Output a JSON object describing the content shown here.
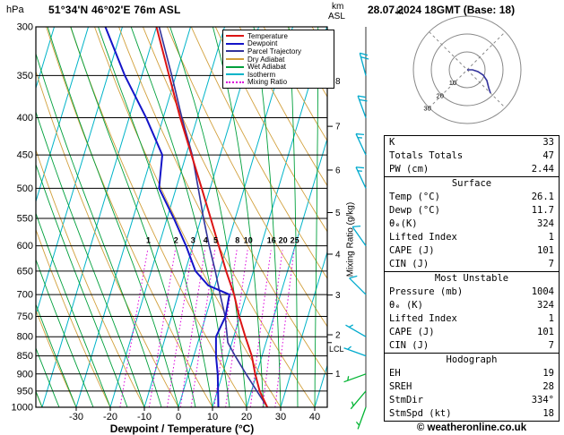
{
  "header": {
    "pressure_unit": "hPa",
    "station": "51°34'N 46°02'E 76m ASL",
    "datetime": "28.07.2024 18GMT (Base: 18)",
    "km_label": "km",
    "asl_label": "ASL"
  },
  "axes": {
    "x_label": "Dewpoint / Temperature (°C)",
    "mixing_ratio_label": "Mixing Ratio (g/kg)",
    "pressure_ticks": [
      300,
      350,
      400,
      450,
      500,
      550,
      600,
      650,
      700,
      750,
      800,
      850,
      900,
      950,
      1000
    ],
    "temp_ticks": [
      -30,
      -20,
      -10,
      0,
      10,
      20,
      30,
      40
    ],
    "km_scale": [
      [
        8,
        356
      ],
      [
        7,
        411
      ],
      [
        6,
        472
      ],
      [
        5,
        540
      ],
      [
        4,
        616
      ],
      [
        3,
        701
      ],
      [
        2,
        795
      ],
      [
        1,
        899
      ]
    ],
    "lcl": {
      "label": "LCL",
      "pressure": 815
    }
  },
  "legend": [
    {
      "label": "Temperature",
      "color": "#dc1414",
      "dashed": false
    },
    {
      "label": "Dewpoint",
      "color": "#1414c8",
      "dashed": false
    },
    {
      "label": "Parcel Trajectory",
      "color": "#32329b",
      "dashed": false
    },
    {
      "label": "Dry Adiabat",
      "color": "#d2a03c",
      "dashed": false
    },
    {
      "label": "Wet Adiabat",
      "color": "#00a03c",
      "dashed": false
    },
    {
      "label": "Isotherm",
      "color": "#00b4c8",
      "dashed": false
    },
    {
      "label": "Mixing Ratio",
      "color": "#dc00dc",
      "dashed": true
    }
  ],
  "colors": {
    "temperature": "#dc1414",
    "dewpoint": "#1414c8",
    "parcel": "#32329b",
    "dry_adiabat": "#d2a03c",
    "wet_adiabat": "#00a03c",
    "isotherm": "#00b4c8",
    "mixing_ratio": "#dc00dc",
    "barb_upper": "#00aacd",
    "barb_lower": "#00b432",
    "grid": "#000000"
  },
  "chart_data": {
    "type": "skewt-log-p",
    "pressure_range": [
      300,
      1000
    ],
    "isotherm_step": 10,
    "dry_adiabat_step": 10,
    "wet_adiabat_step": 5,
    "mixing_ratio_lines": [
      1,
      2,
      3,
      4,
      5,
      8,
      10,
      16,
      20,
      25
    ],
    "temperature_profile": [
      [
        1000,
        26.1
      ],
      [
        950,
        22.4
      ],
      [
        900,
        19.6
      ],
      [
        850,
        17.0
      ],
      [
        800,
        13.4
      ],
      [
        750,
        9.8
      ],
      [
        700,
        6.4
      ],
      [
        650,
        2.0
      ],
      [
        600,
        -2.4
      ],
      [
        550,
        -7.2
      ],
      [
        500,
        -12.5
      ],
      [
        450,
        -18.4
      ],
      [
        400,
        -25.0
      ],
      [
        350,
        -32.0
      ],
      [
        300,
        -40.0
      ]
    ],
    "dewpoint_profile": [
      [
        1000,
        11.7
      ],
      [
        950,
        10.2
      ],
      [
        900,
        8.6
      ],
      [
        850,
        6.5
      ],
      [
        800,
        4.8
      ],
      [
        750,
        5.8
      ],
      [
        700,
        5.0
      ],
      [
        680,
        -2.0
      ],
      [
        650,
        -7.0
      ],
      [
        600,
        -12.0
      ],
      [
        550,
        -18.0
      ],
      [
        500,
        -25.0
      ],
      [
        450,
        -27.0
      ],
      [
        400,
        -35.0
      ],
      [
        350,
        -45.0
      ],
      [
        300,
        -55.0
      ]
    ],
    "parcel_profile": [
      [
        1000,
        26.1
      ],
      [
        950,
        21.6
      ],
      [
        900,
        16.9
      ],
      [
        850,
        12.1
      ],
      [
        815,
        8.8
      ],
      [
        750,
        5.7
      ],
      [
        700,
        2.3
      ],
      [
        650,
        -1.2
      ],
      [
        600,
        -5.2
      ],
      [
        550,
        -9.3
      ],
      [
        500,
        -13.5
      ],
      [
        450,
        -18.2
      ],
      [
        400,
        -24.5
      ],
      [
        350,
        -31.2
      ],
      [
        300,
        -39.2
      ]
    ],
    "wind_barbs": [
      {
        "p": 350,
        "dir": 345,
        "kt": 20,
        "level": "upper"
      },
      {
        "p": 400,
        "dir": 340,
        "kt": 20,
        "level": "upper"
      },
      {
        "p": 450,
        "dir": 335,
        "kt": 15,
        "level": "upper"
      },
      {
        "p": 500,
        "dir": 335,
        "kt": 15,
        "level": "upper"
      },
      {
        "p": 600,
        "dir": 325,
        "kt": 10,
        "level": "upper"
      },
      {
        "p": 700,
        "dir": 315,
        "kt": 10,
        "level": "upper"
      },
      {
        "p": 800,
        "dir": 300,
        "kt": 5,
        "level": "upper"
      },
      {
        "p": 850,
        "dir": 290,
        "kt": 5,
        "level": "upper"
      },
      {
        "p": 900,
        "dir": 250,
        "kt": 5,
        "level": "lower"
      },
      {
        "p": 950,
        "dir": 220,
        "kt": 5,
        "level": "lower"
      },
      {
        "p": 1000,
        "dir": 200,
        "kt": 5,
        "level": "lower"
      }
    ]
  },
  "hodograph": {
    "unit": "kt",
    "rings_kt": [
      10,
      20,
      30
    ],
    "trace_kt": [
      [
        0,
        0
      ],
      [
        3,
        0
      ],
      [
        6,
        1
      ],
      [
        9,
        3
      ],
      [
        11,
        6
      ],
      [
        12,
        10
      ],
      [
        13,
        13
      ]
    ]
  },
  "stats_panels": [
    {
      "header": null,
      "rows": [
        [
          "K",
          "33"
        ],
        [
          "Totals Totals",
          "47"
        ],
        [
          "PW (cm)",
          "2.44"
        ]
      ]
    },
    {
      "header": "Surface",
      "rows": [
        [
          "Temp (°C)",
          "26.1"
        ],
        [
          "Dewp (°C)",
          "11.7"
        ],
        [
          "θₑ(K)",
          "324"
        ],
        [
          "Lifted Index",
          "1"
        ],
        [
          "CAPE (J)",
          "101"
        ],
        [
          "CIN (J)",
          "7"
        ]
      ]
    },
    {
      "header": "Most Unstable",
      "rows": [
        [
          "Pressure (mb)",
          "1004"
        ],
        [
          "θₑ (K)",
          "324"
        ],
        [
          "Lifted Index",
          "1"
        ],
        [
          "CAPE (J)",
          "101"
        ],
        [
          "CIN (J)",
          "7"
        ]
      ]
    },
    {
      "header": "Hodograph",
      "rows": [
        [
          "EH",
          "19"
        ],
        [
          "SREH",
          "28"
        ],
        [
          "StmDir",
          "334°"
        ],
        [
          "StmSpd (kt)",
          "18"
        ]
      ]
    }
  ],
  "footer": {
    "copyright": "© weatheronline.co.uk"
  }
}
